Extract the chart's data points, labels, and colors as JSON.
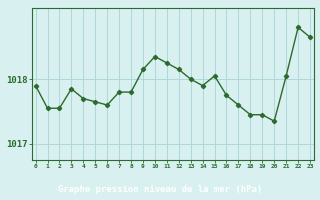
{
  "x": [
    0,
    1,
    2,
    3,
    4,
    5,
    6,
    7,
    8,
    9,
    10,
    11,
    12,
    13,
    14,
    15,
    16,
    17,
    18,
    19,
    20,
    21,
    22,
    23
  ],
  "y": [
    1017.9,
    1017.55,
    1017.55,
    1017.85,
    1017.7,
    1017.65,
    1017.6,
    1017.8,
    1017.8,
    1018.15,
    1018.35,
    1018.25,
    1018.15,
    1018.0,
    1017.9,
    1018.05,
    1017.75,
    1017.6,
    1017.45,
    1017.45,
    1017.35,
    1018.05,
    1018.8,
    1018.65
  ],
  "line_color": "#2d6a2d",
  "marker_color": "#2d6a2d",
  "bg_color": "#d8f0f0",
  "grid_color": "#b0d8d8",
  "xlabel": "Graphe pression niveau de la mer (hPa)",
  "xlabel_bg": "#2d6a2d",
  "xlabel_color": "#ffffff",
  "ytick_labels": [
    "1017",
    "1018"
  ],
  "ytick_values": [
    1017.0,
    1018.0
  ],
  "ylim": [
    1016.75,
    1019.1
  ],
  "xlim": [
    -0.3,
    23.3
  ],
  "xtick_labels": [
    "0",
    "1",
    "2",
    "3",
    "4",
    "5",
    "6",
    "7",
    "8",
    "9",
    "10",
    "11",
    "12",
    "13",
    "14",
    "15",
    "16",
    "17",
    "18",
    "19",
    "20",
    "21",
    "22",
    "23"
  ],
  "axis_color": "#2d6a2d",
  "tick_color": "#2d6a2d",
  "spine_color": "#2d6a2d"
}
